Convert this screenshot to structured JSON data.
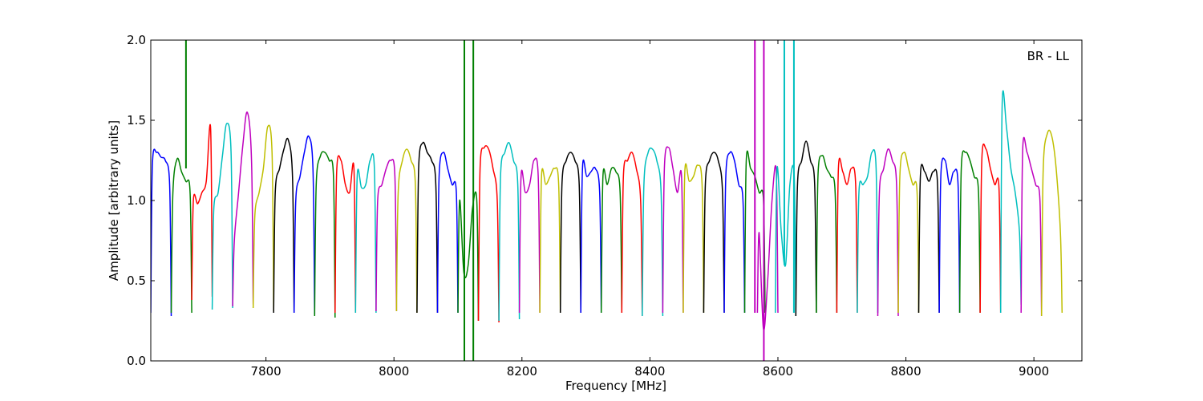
{
  "chart_data": {
    "type": "line",
    "title": "",
    "xlabel": "Frequency [MHz]",
    "ylabel": "Amplitude [arbitrary units]",
    "annotation": "BR - LL",
    "annotation_position": "top-right",
    "xlim": [
      7620,
      9075
    ],
    "ylim": [
      0.0,
      2.0
    ],
    "xticks": [
      7800,
      8000,
      8200,
      8400,
      8600,
      8800,
      9000
    ],
    "yticks": [
      0.0,
      0.5,
      1.0,
      1.5,
      2.0
    ],
    "ytick_labels": [
      "0.0",
      "0.5",
      "1.0",
      "1.5",
      "2.0"
    ],
    "grid": false,
    "legend": false,
    "series_colors": [
      "#0000ff",
      "#008000",
      "#ff0000",
      "#00bfbf",
      "#bf00bf",
      "#bfbf00",
      "#000000"
    ],
    "channel_width_mhz": 32,
    "channels": [
      {
        "start": 7620,
        "color": "#0000ff",
        "values": [
          0.3,
          1.22,
          1.3,
          1.27,
          1.25,
          1.1,
          0.28
        ]
      },
      {
        "start": 7652,
        "color": "#008000",
        "values": [
          0.3,
          1.05,
          1.26,
          1.18,
          1.12,
          1.05,
          0.3
        ]
      },
      {
        "start": 7684,
        "color": "#ff0000",
        "values": [
          0.38,
          1.0,
          0.98,
          1.05,
          1.12,
          1.45,
          0.4
        ]
      },
      {
        "start": 7716,
        "color": "#00bfbf",
        "values": [
          0.32,
          0.95,
          1.05,
          1.28,
          1.48,
          1.3,
          0.33
        ]
      },
      {
        "start": 7748,
        "color": "#bf00bf",
        "values": [
          0.34,
          0.75,
          1.05,
          1.35,
          1.55,
          1.25,
          0.35
        ]
      },
      {
        "start": 7780,
        "color": "#bfbf00",
        "values": [
          0.33,
          0.9,
          1.05,
          1.2,
          1.46,
          1.3,
          0.31
        ]
      },
      {
        "start": 7812,
        "color": "#000000",
        "values": [
          0.3,
          1.05,
          1.2,
          1.32,
          1.38,
          1.15,
          0.3
        ]
      },
      {
        "start": 7844,
        "color": "#0000ff",
        "values": [
          0.3,
          1.0,
          1.15,
          1.3,
          1.4,
          1.2,
          0.29
        ]
      },
      {
        "start": 7876,
        "color": "#008000",
        "values": [
          0.28,
          1.1,
          1.28,
          1.3,
          1.25,
          1.15,
          0.27
        ]
      },
      {
        "start": 7908,
        "color": "#ff0000",
        "values": [
          0.3,
          1.18,
          1.25,
          1.1,
          1.05,
          1.2,
          0.3
        ]
      },
      {
        "start": 7940,
        "color": "#00bfbf",
        "values": [
          0.3,
          1.15,
          1.08,
          1.1,
          1.25,
          1.2,
          0.3
        ]
      },
      {
        "start": 7972,
        "color": "#bf00bf",
        "values": [
          0.31,
          1.0,
          1.1,
          1.2,
          1.25,
          1.15,
          0.31
        ]
      },
      {
        "start": 8004,
        "color": "#bfbf00",
        "values": [
          0.31,
          1.05,
          1.25,
          1.32,
          1.25,
          1.1,
          0.3
        ]
      },
      {
        "start": 8036,
        "color": "#000000",
        "values": [
          0.3,
          1.2,
          1.36,
          1.3,
          1.25,
          1.1,
          0.3
        ]
      },
      {
        "start": 8068,
        "color": "#0000ff",
        "values": [
          0.3,
          1.15,
          1.3,
          1.2,
          1.1,
          1.05,
          0.3
        ]
      },
      {
        "start": 8100,
        "color": "#008000",
        "values": [
          0.3,
          1.0,
          0.55,
          0.6,
          0.95,
          1.0,
          0.25
        ]
      },
      {
        "start": 8132,
        "color": "#ff0000",
        "values": [
          0.25,
          1.2,
          1.33,
          1.32,
          1.2,
          1.0,
          0.24
        ]
      },
      {
        "start": 8164,
        "color": "#00bfbf",
        "values": [
          0.25,
          1.15,
          1.3,
          1.36,
          1.25,
          1.1,
          0.26
        ]
      },
      {
        "start": 8196,
        "color": "#bf00bf",
        "values": [
          0.3,
          1.15,
          1.05,
          1.1,
          1.25,
          1.15,
          0.3
        ]
      },
      {
        "start": 8228,
        "color": "#bfbf00",
        "values": [
          0.3,
          1.15,
          1.1,
          1.15,
          1.2,
          1.1,
          0.3
        ]
      },
      {
        "start": 8260,
        "color": "#000000",
        "values": [
          0.3,
          1.1,
          1.25,
          1.3,
          1.25,
          1.1,
          0.3
        ]
      },
      {
        "start": 8292,
        "color": "#0000ff",
        "values": [
          0.3,
          1.2,
          1.15,
          1.18,
          1.2,
          1.05,
          0.3
        ]
      },
      {
        "start": 8324,
        "color": "#008000",
        "values": [
          0.3,
          1.15,
          1.1,
          1.2,
          1.18,
          1.05,
          0.3
        ]
      },
      {
        "start": 8356,
        "color": "#ff0000",
        "values": [
          0.3,
          1.15,
          1.25,
          1.3,
          1.2,
          1.0,
          0.28
        ]
      },
      {
        "start": 8388,
        "color": "#00bfbf",
        "values": [
          0.28,
          1.1,
          1.3,
          1.32,
          1.25,
          1.05,
          0.28
        ]
      },
      {
        "start": 8420,
        "color": "#bf00bf",
        "values": [
          0.3,
          1.2,
          1.33,
          1.2,
          1.05,
          1.15,
          0.3
        ]
      },
      {
        "start": 8452,
        "color": "#bfbf00",
        "values": [
          0.3,
          1.18,
          1.12,
          1.15,
          1.22,
          1.1,
          0.3
        ]
      },
      {
        "start": 8484,
        "color": "#000000",
        "values": [
          0.3,
          1.1,
          1.25,
          1.3,
          1.25,
          1.05,
          0.3
        ]
      },
      {
        "start": 8516,
        "color": "#0000ff",
        "values": [
          0.3,
          1.15,
          1.3,
          1.25,
          1.1,
          1.0,
          0.3
        ]
      },
      {
        "start": 8548,
        "color": "#008000",
        "values": [
          0.3,
          1.25,
          1.2,
          1.15,
          1.05,
          1.0,
          0.3
        ]
      },
      {
        "start": 8568,
        "color": "#bf00bf",
        "values": [
          0.3,
          0.8,
          0.2,
          0.5,
          1.0,
          1.18,
          0.3
        ]
      },
      {
        "start": 8596,
        "color": "#00bfbf",
        "values": [
          0.3,
          1.2,
          0.8,
          0.6,
          1.1,
          1.15,
          0.28
        ]
      },
      {
        "start": 8628,
        "color": "#000000",
        "values": [
          0.28,
          1.1,
          1.25,
          1.37,
          1.25,
          1.1,
          0.3
        ]
      },
      {
        "start": 8660,
        "color": "#008000",
        "values": [
          0.3,
          1.15,
          1.28,
          1.2,
          1.15,
          1.05,
          0.3
        ]
      },
      {
        "start": 8692,
        "color": "#ff0000",
        "values": [
          0.3,
          1.2,
          1.18,
          1.1,
          1.2,
          1.1,
          0.3
        ]
      },
      {
        "start": 8724,
        "color": "#00bfbf",
        "values": [
          0.3,
          1.05,
          1.1,
          1.15,
          1.3,
          1.2,
          0.3
        ]
      },
      {
        "start": 8756,
        "color": "#bf00bf",
        "values": [
          0.28,
          1.05,
          1.2,
          1.32,
          1.25,
          1.1,
          0.28
        ]
      },
      {
        "start": 8788,
        "color": "#bfbf00",
        "values": [
          0.3,
          1.15,
          1.3,
          1.2,
          1.1,
          1.05,
          0.3
        ]
      },
      {
        "start": 8820,
        "color": "#000000",
        "values": [
          0.3,
          1.15,
          1.18,
          1.12,
          1.18,
          1.1,
          0.3
        ]
      },
      {
        "start": 8852,
        "color": "#0000ff",
        "values": [
          0.3,
          1.15,
          1.25,
          1.1,
          1.18,
          1.1,
          0.3
        ]
      },
      {
        "start": 8884,
        "color": "#008000",
        "values": [
          0.3,
          1.2,
          1.3,
          1.25,
          1.15,
          1.05,
          0.3
        ]
      },
      {
        "start": 8916,
        "color": "#ff0000",
        "values": [
          0.3,
          1.25,
          1.32,
          1.2,
          1.1,
          1.08,
          0.3
        ]
      },
      {
        "start": 8948,
        "color": "#00bfbf",
        "values": [
          0.3,
          1.62,
          1.45,
          1.2,
          1.05,
          0.8,
          0.35
        ]
      },
      {
        "start": 8980,
        "color": "#bf00bf",
        "values": [
          0.3,
          1.32,
          1.3,
          1.2,
          1.1,
          1.0,
          0.28
        ]
      },
      {
        "start": 9012,
        "color": "#bfbf00",
        "values": [
          0.28,
          1.2,
          1.42,
          1.4,
          1.2,
          0.8,
          0.3
        ]
      }
    ],
    "spikes": [
      {
        "x": 7675,
        "color": "#008000",
        "ymin": 1.2,
        "ymax": 2.0
      },
      {
        "x": 8110,
        "color": "#008000",
        "ymin": 0.0,
        "ymax": 2.0
      },
      {
        "x": 8124,
        "color": "#008000",
        "ymin": 0.0,
        "ymax": 2.0
      },
      {
        "x": 8564,
        "color": "#bf00bf",
        "ymin": 0.3,
        "ymax": 2.0
      },
      {
        "x": 8578,
        "color": "#bf00bf",
        "ymin": 0.0,
        "ymax": 2.0
      },
      {
        "x": 8610,
        "color": "#00bfbf",
        "ymin": 0.6,
        "ymax": 2.0
      },
      {
        "x": 8625,
        "color": "#00bfbf",
        "ymin": 0.3,
        "ymax": 2.0
      }
    ]
  }
}
